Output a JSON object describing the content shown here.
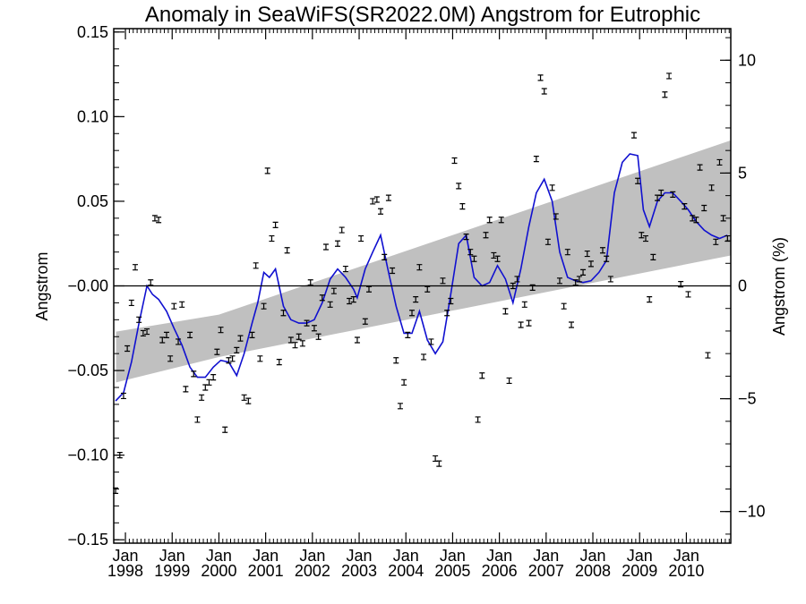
{
  "chart_data": {
    "type": "scatter",
    "title": "Anomaly in SeaWiFS(SR2022.0M) Angstrom for Eutrophic",
    "ylabel": "Angstrom",
    "ylabel_right": "Angstrom (%)",
    "xlim": [
      1997.75,
      2010.95
    ],
    "ylim": [
      -0.152,
      0.152
    ],
    "ylim_right": [
      -11.4,
      11.4
    ],
    "yticks": [
      -0.15,
      -0.1,
      -0.05,
      0.0,
      0.05,
      0.1,
      0.15
    ],
    "ytick_labels": [
      "−0.15",
      "−0.10",
      "−0.05",
      "−0.00",
      "0.05",
      "0.10",
      "0.15"
    ],
    "yticks_right": [
      -10,
      -5,
      0,
      5,
      10
    ],
    "ytick_labels_right": [
      "−10",
      "−5",
      "0",
      "5",
      "10"
    ],
    "xticks": [
      {
        "x": 1998,
        "month": "Jan",
        "year": "1998"
      },
      {
        "x": 1999,
        "month": "Jan",
        "year": "1999"
      },
      {
        "x": 2000,
        "month": "Jan",
        "year": "2000"
      },
      {
        "x": 2001,
        "month": "Jan",
        "year": "2001"
      },
      {
        "x": 2002,
        "month": "Jan",
        "year": "2002"
      },
      {
        "x": 2003,
        "month": "Jan",
        "year": "2003"
      },
      {
        "x": 2004,
        "month": "Jan",
        "year": "2004"
      },
      {
        "x": 2005,
        "month": "Jan",
        "year": "2005"
      },
      {
        "x": 2006,
        "month": "Jan",
        "year": "2006"
      },
      {
        "x": 2007,
        "month": "Jan",
        "year": "2007"
      },
      {
        "x": 2008,
        "month": "Jan",
        "year": "2008"
      },
      {
        "x": 2009,
        "month": "Jan",
        "year": "2009"
      },
      {
        "x": 2010,
        "month": "Jan",
        "year": "2010"
      }
    ],
    "zero_line": 0.0,
    "trend_band": {
      "x": [
        1997.8,
        2000.0,
        2010.95
      ],
      "lower": [
        -0.057,
        -0.042,
        0.018
      ],
      "upper": [
        -0.027,
        -0.017,
        0.086
      ],
      "color": "#c0c0c0"
    },
    "monthly_points": [
      {
        "x": 1997.79,
        "y": -0.121
      },
      {
        "x": 1997.88,
        "y": -0.1
      },
      {
        "x": 1997.96,
        "y": -0.065
      },
      {
        "x": 1998.04,
        "y": -0.037
      },
      {
        "x": 1998.13,
        "y": -0.01
      },
      {
        "x": 1998.21,
        "y": 0.011
      },
      {
        "x": 1998.29,
        "y": -0.02
      },
      {
        "x": 1998.38,
        "y": -0.028
      },
      {
        "x": 1998.46,
        "y": -0.027
      },
      {
        "x": 1998.54,
        "y": 0.002
      },
      {
        "x": 1998.63,
        "y": 0.04
      },
      {
        "x": 1998.71,
        "y": 0.039
      },
      {
        "x": 1998.79,
        "y": -0.032
      },
      {
        "x": 1998.88,
        "y": -0.029
      },
      {
        "x": 1998.96,
        "y": -0.043
      },
      {
        "x": 1999.04,
        "y": -0.012
      },
      {
        "x": 1999.13,
        "y": -0.033
      },
      {
        "x": 1999.21,
        "y": -0.011
      },
      {
        "x": 1999.29,
        "y": -0.061
      },
      {
        "x": 1999.38,
        "y": -0.029
      },
      {
        "x": 1999.46,
        "y": -0.052
      },
      {
        "x": 1999.54,
        "y": -0.079
      },
      {
        "x": 1999.63,
        "y": -0.066
      },
      {
        "x": 1999.71,
        "y": -0.06
      },
      {
        "x": 1999.79,
        "y": -0.057
      },
      {
        "x": 1999.88,
        "y": -0.054
      },
      {
        "x": 1999.96,
        "y": -0.039
      },
      {
        "x": 2000.04,
        "y": -0.026
      },
      {
        "x": 2000.13,
        "y": -0.085
      },
      {
        "x": 2000.21,
        "y": -0.044
      },
      {
        "x": 2000.29,
        "y": -0.043
      },
      {
        "x": 2000.38,
        "y": -0.038
      },
      {
        "x": 2000.46,
        "y": -0.031
      },
      {
        "x": 2000.54,
        "y": -0.066
      },
      {
        "x": 2000.63,
        "y": -0.068
      },
      {
        "x": 2000.71,
        "y": -0.029
      },
      {
        "x": 2000.79,
        "y": 0.012
      },
      {
        "x": 2000.88,
        "y": -0.043
      },
      {
        "x": 2000.96,
        "y": -0.012
      },
      {
        "x": 2001.04,
        "y": 0.068
      },
      {
        "x": 2001.13,
        "y": 0.028
      },
      {
        "x": 2001.21,
        "y": 0.036
      },
      {
        "x": 2001.29,
        "y": -0.045
      },
      {
        "x": 2001.38,
        "y": -0.016
      },
      {
        "x": 2001.46,
        "y": 0.021
      },
      {
        "x": 2001.54,
        "y": -0.032
      },
      {
        "x": 2001.63,
        "y": -0.035
      },
      {
        "x": 2001.71,
        "y": -0.03
      },
      {
        "x": 2001.79,
        "y": -0.034
      },
      {
        "x": 2001.88,
        "y": -0.022
      },
      {
        "x": 2001.96,
        "y": 0.002
      },
      {
        "x": 2002.04,
        "y": -0.025
      },
      {
        "x": 2002.13,
        "y": -0.03
      },
      {
        "x": 2002.21,
        "y": -0.007
      },
      {
        "x": 2002.29,
        "y": 0.023
      },
      {
        "x": 2002.38,
        "y": -0.011
      },
      {
        "x": 2002.46,
        "y": -0.003
      },
      {
        "x": 2002.54,
        "y": 0.025
      },
      {
        "x": 2002.63,
        "y": 0.033
      },
      {
        "x": 2002.71,
        "y": 0.01
      },
      {
        "x": 2002.79,
        "y": -0.009
      },
      {
        "x": 2002.88,
        "y": -0.008
      },
      {
        "x": 2002.96,
        "y": -0.032
      },
      {
        "x": 2003.04,
        "y": 0.028
      },
      {
        "x": 2003.13,
        "y": -0.021
      },
      {
        "x": 2003.21,
        "y": -0.002
      },
      {
        "x": 2003.29,
        "y": 0.05
      },
      {
        "x": 2003.38,
        "y": 0.051
      },
      {
        "x": 2003.46,
        "y": 0.044
      },
      {
        "x": 2003.54,
        "y": 0.017
      },
      {
        "x": 2003.63,
        "y": 0.052
      },
      {
        "x": 2003.71,
        "y": 0.009
      },
      {
        "x": 2003.79,
        "y": -0.044
      },
      {
        "x": 2003.88,
        "y": -0.071
      },
      {
        "x": 2003.96,
        "y": -0.057
      },
      {
        "x": 2004.04,
        "y": -0.029
      },
      {
        "x": 2004.13,
        "y": -0.016
      },
      {
        "x": 2004.21,
        "y": -0.008
      },
      {
        "x": 2004.29,
        "y": 0.011
      },
      {
        "x": 2004.38,
        "y": -0.042
      },
      {
        "x": 2004.46,
        "y": -0.002
      },
      {
        "x": 2004.54,
        "y": -0.033
      },
      {
        "x": 2004.63,
        "y": -0.102
      },
      {
        "x": 2004.71,
        "y": -0.105
      },
      {
        "x": 2004.79,
        "y": 0.003
      },
      {
        "x": 2004.88,
        "y": -0.016
      },
      {
        "x": 2004.96,
        "y": -0.009
      },
      {
        "x": 2005.04,
        "y": 0.074
      },
      {
        "x": 2005.13,
        "y": 0.059
      },
      {
        "x": 2005.21,
        "y": 0.047
      },
      {
        "x": 2005.29,
        "y": 0.029
      },
      {
        "x": 2005.38,
        "y": 0.02
      },
      {
        "x": 2005.46,
        "y": 0.016
      },
      {
        "x": 2005.54,
        "y": -0.079
      },
      {
        "x": 2005.63,
        "y": -0.053
      },
      {
        "x": 2005.71,
        "y": 0.03
      },
      {
        "x": 2005.79,
        "y": 0.039
      },
      {
        "x": 2005.88,
        "y": 0.018
      },
      {
        "x": 2005.96,
        "y": 0.016
      },
      {
        "x": 2006.04,
        "y": 0.039
      },
      {
        "x": 2006.13,
        "y": -0.015
      },
      {
        "x": 2006.21,
        "y": -0.056
      },
      {
        "x": 2006.29,
        "y": 0.0
      },
      {
        "x": 2006.38,
        "y": 0.004
      },
      {
        "x": 2006.46,
        "y": -0.023
      },
      {
        "x": 2006.54,
        "y": -0.011
      },
      {
        "x": 2006.63,
        "y": -0.022
      },
      {
        "x": 2006.71,
        "y": -0.001
      },
      {
        "x": 2006.79,
        "y": 0.075
      },
      {
        "x": 2006.88,
        "y": 0.123
      },
      {
        "x": 2006.96,
        "y": 0.115
      },
      {
        "x": 2007.04,
        "y": 0.026
      },
      {
        "x": 2007.13,
        "y": 0.058
      },
      {
        "x": 2007.21,
        "y": 0.041
      },
      {
        "x": 2007.29,
        "y": 0.003
      },
      {
        "x": 2007.38,
        "y": -0.012
      },
      {
        "x": 2007.46,
        "y": 0.02
      },
      {
        "x": 2007.54,
        "y": -0.023
      },
      {
        "x": 2007.63,
        "y": 0.002
      },
      {
        "x": 2007.71,
        "y": 0.004
      },
      {
        "x": 2007.79,
        "y": 0.008
      },
      {
        "x": 2007.88,
        "y": 0.019
      },
      {
        "x": 2007.96,
        "y": 0.013
      },
      {
        "x": 2008.21,
        "y": 0.021
      },
      {
        "x": 2008.29,
        "y": 0.016
      },
      {
        "x": 2008.38,
        "y": 0.004
      },
      {
        "x": 2008.88,
        "y": 0.089
      },
      {
        "x": 2008.96,
        "y": 0.062
      },
      {
        "x": 2009.04,
        "y": 0.03
      },
      {
        "x": 2009.13,
        "y": 0.028
      },
      {
        "x": 2009.21,
        "y": -0.008
      },
      {
        "x": 2009.29,
        "y": 0.017
      },
      {
        "x": 2009.38,
        "y": 0.052
      },
      {
        "x": 2009.46,
        "y": 0.055
      },
      {
        "x": 2009.54,
        "y": 0.113
      },
      {
        "x": 2009.63,
        "y": 0.124
      },
      {
        "x": 2009.71,
        "y": 0.054
      },
      {
        "x": 2009.88,
        "y": 0.001
      },
      {
        "x": 2009.96,
        "y": 0.047
      },
      {
        "x": 2010.04,
        "y": -0.005
      },
      {
        "x": 2010.13,
        "y": 0.04
      },
      {
        "x": 2010.21,
        "y": 0.039
      },
      {
        "x": 2010.29,
        "y": 0.07
      },
      {
        "x": 2010.38,
        "y": 0.046
      },
      {
        "x": 2010.46,
        "y": -0.041
      },
      {
        "x": 2010.54,
        "y": 0.058
      },
      {
        "x": 2010.63,
        "y": 0.026
      },
      {
        "x": 2010.71,
        "y": 0.073
      },
      {
        "x": 2010.79,
        "y": 0.04
      },
      {
        "x": 2010.88,
        "y": 0.028
      }
    ],
    "running_mean": {
      "color": "#1010d0",
      "x": [
        1997.79,
        1997.96,
        1998.13,
        1998.29,
        1998.46,
        1998.58,
        1998.71,
        1998.88,
        1999.04,
        1999.21,
        1999.38,
        1999.54,
        1999.71,
        1999.88,
        2000.04,
        2000.21,
        2000.38,
        2000.54,
        2000.71,
        2000.83,
        2000.96,
        2001.08,
        2001.21,
        2001.38,
        2001.54,
        2001.71,
        2001.88,
        2002.04,
        2002.21,
        2002.38,
        2002.54,
        2002.71,
        2002.88,
        2002.96,
        2003.13,
        2003.29,
        2003.46,
        2003.63,
        2003.79,
        2003.96,
        2004.13,
        2004.29,
        2004.46,
        2004.63,
        2004.79,
        2004.96,
        2005.13,
        2005.29,
        2005.46,
        2005.63,
        2005.79,
        2005.96,
        2006.13,
        2006.29,
        2006.46,
        2006.63,
        2006.79,
        2006.96,
        2007.13,
        2007.29,
        2007.46,
        2007.63,
        2007.79,
        2007.96,
        2008.13,
        2008.29,
        2008.46,
        2008.63,
        2008.79,
        2008.96,
        2009.08,
        2009.21,
        2009.38,
        2009.54,
        2009.71,
        2009.88,
        2010.04,
        2010.21,
        2010.38,
        2010.54,
        2010.71,
        2010.88
      ],
      "y": [
        -0.068,
        -0.063,
        -0.045,
        -0.022,
        0.0,
        -0.005,
        -0.008,
        -0.015,
        -0.025,
        -0.035,
        -0.048,
        -0.054,
        -0.054,
        -0.048,
        -0.044,
        -0.045,
        -0.053,
        -0.04,
        -0.022,
        -0.01,
        0.008,
        0.005,
        0.01,
        -0.012,
        -0.02,
        -0.022,
        -0.022,
        -0.02,
        -0.01,
        0.004,
        0.01,
        0.005,
        -0.002,
        -0.007,
        0.01,
        0.02,
        0.03,
        0.008,
        -0.012,
        -0.028,
        -0.028,
        -0.015,
        -0.032,
        -0.04,
        -0.033,
        -0.005,
        0.025,
        0.03,
        0.005,
        0.0,
        0.002,
        0.012,
        0.004,
        -0.01,
        0.01,
        0.035,
        0.055,
        0.063,
        0.05,
        0.02,
        0.005,
        0.003,
        0.002,
        0.003,
        0.008,
        0.015,
        0.055,
        0.073,
        0.078,
        0.077,
        0.045,
        0.035,
        0.05,
        0.055,
        0.055,
        0.05,
        0.045,
        0.038,
        0.033,
        0.03,
        0.028,
        0.03
      ]
    }
  }
}
